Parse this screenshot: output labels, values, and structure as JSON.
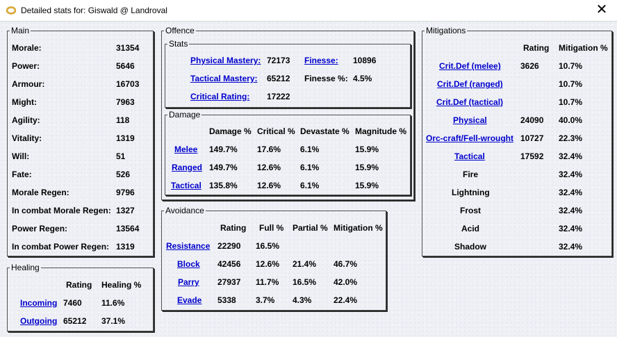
{
  "window": {
    "title": "Detailed stats for: Giswald @ Landroval",
    "close_glyph": "✕"
  },
  "main": {
    "title": "Main",
    "rows": [
      {
        "label": "Morale:",
        "value": "31354"
      },
      {
        "label": "Power:",
        "value": "5646"
      },
      {
        "label": "Armour:",
        "value": "16703"
      },
      {
        "label": "Might:",
        "value": "7963"
      },
      {
        "label": "Agility:",
        "value": "118"
      },
      {
        "label": "Vitality:",
        "value": "1319"
      },
      {
        "label": "Will:",
        "value": "51"
      },
      {
        "label": "Fate:",
        "value": "526"
      },
      {
        "label": "Morale Regen:",
        "value": "9796"
      },
      {
        "label": "In combat Morale Regen:",
        "value": "1327"
      },
      {
        "label": "Power Regen:",
        "value": "13564"
      },
      {
        "label": "In combat Power Regen:",
        "value": "1319"
      }
    ]
  },
  "healing": {
    "title": "Healing",
    "headers": [
      "Rating",
      "Healing %"
    ],
    "rows": [
      {
        "label": "Incoming",
        "rating": "7460",
        "percent": "11.6%"
      },
      {
        "label": "Outgoing",
        "rating": "65212",
        "percent": "37.1%"
      }
    ]
  },
  "offence": {
    "title": "Offence",
    "stats": {
      "title": "Stats",
      "physical_mastery_label": "Physical Mastery:",
      "physical_mastery_value": "72173",
      "finesse_label": "Finesse:",
      "finesse_value": "10896",
      "tactical_mastery_label": "Tactical Mastery:",
      "tactical_mastery_value": "65212",
      "finesse_pct_label": "Finesse %:",
      "finesse_pct_value": "4.5%",
      "critical_rating_label": "Critical Rating:",
      "critical_rating_value": "17222"
    },
    "damage": {
      "title": "Damage",
      "headers": [
        "Damage %",
        "Critical %",
        "Devastate %",
        "Magnitude %"
      ],
      "rows": [
        {
          "label": "Melee",
          "values": [
            "149.7%",
            "17.6%",
            "6.1%",
            "15.9%"
          ]
        },
        {
          "label": "Ranged",
          "values": [
            "149.7%",
            "12.6%",
            "6.1%",
            "15.9%"
          ]
        },
        {
          "label": "Tactical",
          "values": [
            "135.8%",
            "12.6%",
            "6.1%",
            "15.9%"
          ]
        }
      ]
    }
  },
  "avoidance": {
    "title": "Avoidance",
    "headers": [
      "Rating",
      "Full %",
      "Partial %",
      "Mitigation %"
    ],
    "rows": [
      {
        "label": "Resistance",
        "values": [
          "22290",
          "16.5%",
          "",
          ""
        ]
      },
      {
        "label": "Block",
        "values": [
          "42456",
          "12.6%",
          "21.4%",
          "46.7%"
        ]
      },
      {
        "label": "Parry",
        "values": [
          "27937",
          "11.7%",
          "16.5%",
          "42.0%"
        ]
      },
      {
        "label": "Evade",
        "values": [
          "5338",
          "3.7%",
          "4.3%",
          "22.4%"
        ]
      }
    ]
  },
  "mitigations": {
    "title": "Mitigations",
    "headers": [
      "Rating",
      "Mitigation %"
    ],
    "rows": [
      {
        "label": "Crit.Def (melee)",
        "link": true,
        "rating": "3626",
        "percent": "10.7%"
      },
      {
        "label": "Crit.Def (ranged)",
        "link": true,
        "rating": "",
        "percent": "10.7%"
      },
      {
        "label": "Crit.Def (tactical)",
        "link": true,
        "rating": "",
        "percent": "10.7%"
      },
      {
        "label": "Physical",
        "link": true,
        "rating": "24090",
        "percent": "40.0%"
      },
      {
        "label": "Orc-craft/Fell-wrought",
        "link": true,
        "rating": "10727",
        "percent": "22.3%"
      },
      {
        "label": "Tactical",
        "link": true,
        "rating": "17592",
        "percent": "32.4%"
      },
      {
        "label": "Fire",
        "link": false,
        "rating": "",
        "percent": "32.4%"
      },
      {
        "label": "Lightning",
        "link": false,
        "rating": "",
        "percent": "32.4%"
      },
      {
        "label": "Frost",
        "link": false,
        "rating": "",
        "percent": "32.4%"
      },
      {
        "label": "Acid",
        "link": false,
        "rating": "",
        "percent": "32.4%"
      },
      {
        "label": "Shadow",
        "link": false,
        "rating": "",
        "percent": "32.4%"
      }
    ]
  }
}
